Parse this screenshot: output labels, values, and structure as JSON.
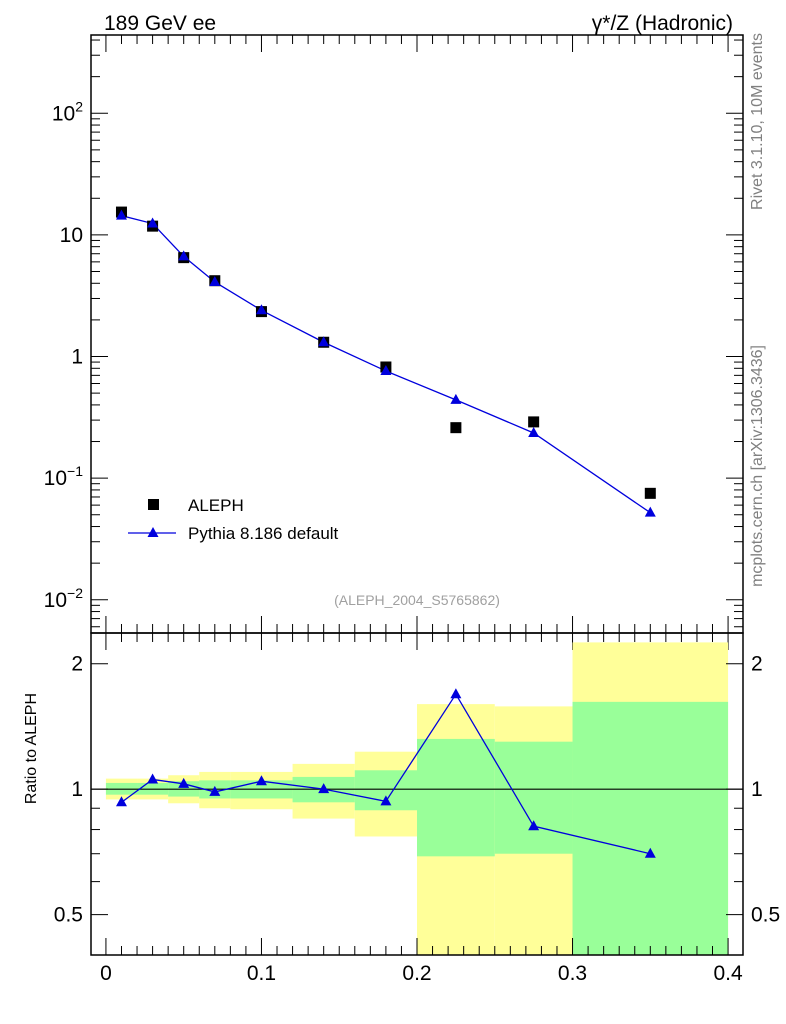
{
  "header": {
    "left": "189 GeV ee",
    "right": "γ*/Z (Hadronic)",
    "side_top": "Rivet 3.1.10,  10M events",
    "side_bottom": "mcplots.cern.ch [arXiv:1306.3436]",
    "analysis_id": "(ALEPH_2004_S5765862)"
  },
  "colors": {
    "data": "#000000",
    "mc": "#0000dd",
    "band_inner": "#99ff99",
    "band_outer": "#ffff99"
  },
  "chart_data": [
    {
      "type": "scatter",
      "panel": "main",
      "yscale": "log",
      "xlim": [
        -0.0096,
        0.4096
      ],
      "ylim": [
        0.00533,
        440
      ],
      "ytick_labels": [
        "10^-2",
        "10^-1",
        "1",
        "10",
        "10^2"
      ],
      "legend_position": "lower-left",
      "series": [
        {
          "name": "ALEPH",
          "marker": "square",
          "x": [
            0.01,
            0.03,
            0.05,
            0.07,
            0.1,
            0.14,
            0.18,
            0.225,
            0.275,
            0.35
          ],
          "y": [
            15.4,
            11.8,
            6.5,
            4.2,
            2.34,
            1.31,
            0.82,
            0.26,
            0.29,
            0.075
          ]
        },
        {
          "name": "Pythia 8.186 default",
          "marker": "triangle",
          "line": true,
          "x": [
            0.01,
            0.03,
            0.05,
            0.07,
            0.1,
            0.14,
            0.18,
            0.225,
            0.275,
            0.35
          ],
          "y": [
            14.4,
            12.4,
            6.65,
            4.1,
            2.4,
            1.31,
            0.76,
            0.44,
            0.235,
            0.052
          ]
        }
      ]
    },
    {
      "type": "line",
      "panel": "ratio",
      "yscale": "log",
      "ylabel": "Ratio to ALEPH",
      "xlim": [
        -0.0096,
        0.4096
      ],
      "ylim": [
        0.4,
        2.37
      ],
      "xtick_labels": [
        "0",
        "0.1",
        "0.2",
        "0.3",
        "0.4"
      ],
      "ytick_labels": [
        "0.5",
        "1",
        "2"
      ],
      "bins": [
        {
          "xlo": 0.0,
          "xhi": 0.02,
          "inner": [
            0.97,
            1.035
          ],
          "outer": [
            0.945,
            1.06
          ]
        },
        {
          "xlo": 0.02,
          "xhi": 0.04,
          "inner": [
            0.97,
            1.035
          ],
          "outer": [
            0.945,
            1.06
          ]
        },
        {
          "xlo": 0.04,
          "xhi": 0.06,
          "inner": [
            0.96,
            1.045
          ],
          "outer": [
            0.925,
            1.08
          ]
        },
        {
          "xlo": 0.06,
          "xhi": 0.08,
          "inner": [
            0.95,
            1.05
          ],
          "outer": [
            0.9,
            1.1
          ]
        },
        {
          "xlo": 0.08,
          "xhi": 0.12,
          "inner": [
            0.95,
            1.05
          ],
          "outer": [
            0.895,
            1.1
          ]
        },
        {
          "xlo": 0.12,
          "xhi": 0.16,
          "inner": [
            0.93,
            1.07
          ],
          "outer": [
            0.85,
            1.15
          ]
        },
        {
          "xlo": 0.16,
          "xhi": 0.2,
          "inner": [
            0.89,
            1.11
          ],
          "outer": [
            0.77,
            1.23
          ]
        },
        {
          "xlo": 0.2,
          "xhi": 0.25,
          "inner": [
            0.69,
            1.32
          ],
          "outer": [
            0.4,
            1.6
          ]
        },
        {
          "xlo": 0.25,
          "xhi": 0.3,
          "inner": [
            0.7,
            1.3
          ],
          "outer": [
            0.4,
            1.58
          ]
        },
        {
          "xlo": 0.3,
          "xhi": 0.4,
          "inner": [
            0.4,
            1.62
          ],
          "outer": [
            0.4,
            2.25
          ]
        }
      ],
      "reference": 1,
      "series": [
        {
          "name": "Pythia 8.186 default",
          "marker": "triangle",
          "x": [
            0.01,
            0.03,
            0.05,
            0.07,
            0.1,
            0.14,
            0.18,
            0.225,
            0.275,
            0.35
          ],
          "y": [
            0.93,
            1.055,
            1.03,
            0.985,
            1.045,
            1.0,
            0.935,
            1.69,
            0.815,
            0.7
          ]
        }
      ]
    }
  ]
}
